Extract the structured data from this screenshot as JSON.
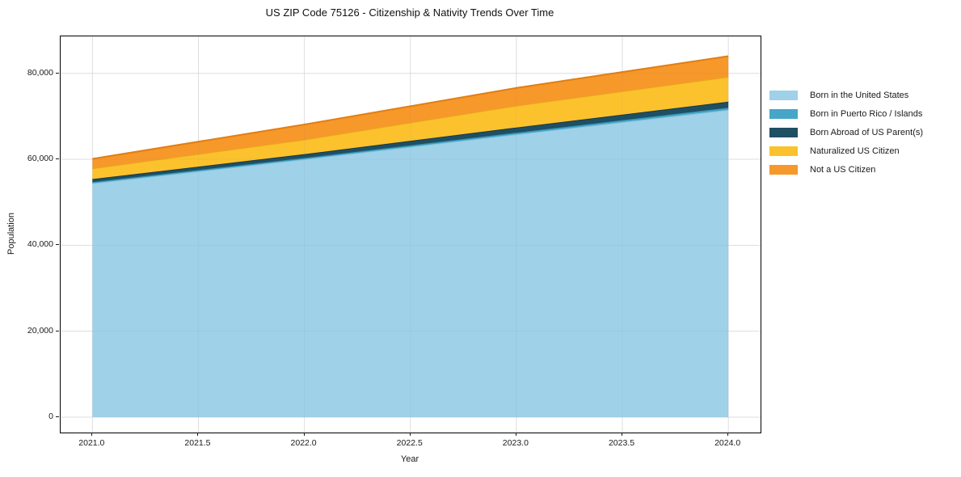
{
  "figure": {
    "background": "#ffffff",
    "text_color": "#1a1a1a"
  },
  "chart_data": {
    "type": "area",
    "stacked": true,
    "title": "US ZIP Code 75126 - Citizenship & Nativity Trends Over Time",
    "xlabel": "Year",
    "ylabel": "Population",
    "x": [
      2021,
      2022,
      2023,
      2024
    ],
    "series": [
      {
        "name": "Born in the United States",
        "color": "#9FD1E8",
        "edge_color": "#8CC3DD",
        "values": [
          54400,
          60000,
          65800,
          71500
        ]
      },
      {
        "name": "Born in Puerto Rico / Islands",
        "color": "#46A6C8",
        "edge_color": "#2E93B5",
        "values": [
          300,
          300,
          400,
          500
        ]
      },
      {
        "name": "Born Abroad of US Parent(s)",
        "color": "#1F4F63",
        "edge_color": "#16384A",
        "values": [
          700,
          900,
          1200,
          1400
        ]
      },
      {
        "name": "Naturalized US Citizen",
        "color": "#FBC22D",
        "edge_color": "#E9A51C",
        "values": [
          2500,
          3400,
          5100,
          5800
        ]
      },
      {
        "name": "Not a US Citizen",
        "color": "#F7982B",
        "edge_color": "#E17E14",
        "values": [
          2200,
          3500,
          4100,
          4800
        ]
      }
    ],
    "stacked_totals": [
      60100,
      68100,
      76600,
      84000
    ],
    "xlim": [
      2020.85,
      2024.152
    ],
    "ylim": [
      -3580,
      88600
    ],
    "xticks": {
      "values": [
        2021.0,
        2021.5,
        2022.0,
        2022.5,
        2023.0,
        2023.5,
        2024.0
      ],
      "labels": [
        "2021.0",
        "2021.5",
        "2022.0",
        "2022.5",
        "2023.0",
        "2023.5",
        "2024.0"
      ]
    },
    "yticks": {
      "values": [
        0,
        20000,
        40000,
        60000,
        80000
      ],
      "labels": [
        "0",
        "20,000",
        "40,000",
        "60,000",
        "80,000"
      ]
    },
    "grid": true,
    "grid_color": "#e7e7e7",
    "spine_color": "#000000",
    "legend_position": "right-outside"
  }
}
